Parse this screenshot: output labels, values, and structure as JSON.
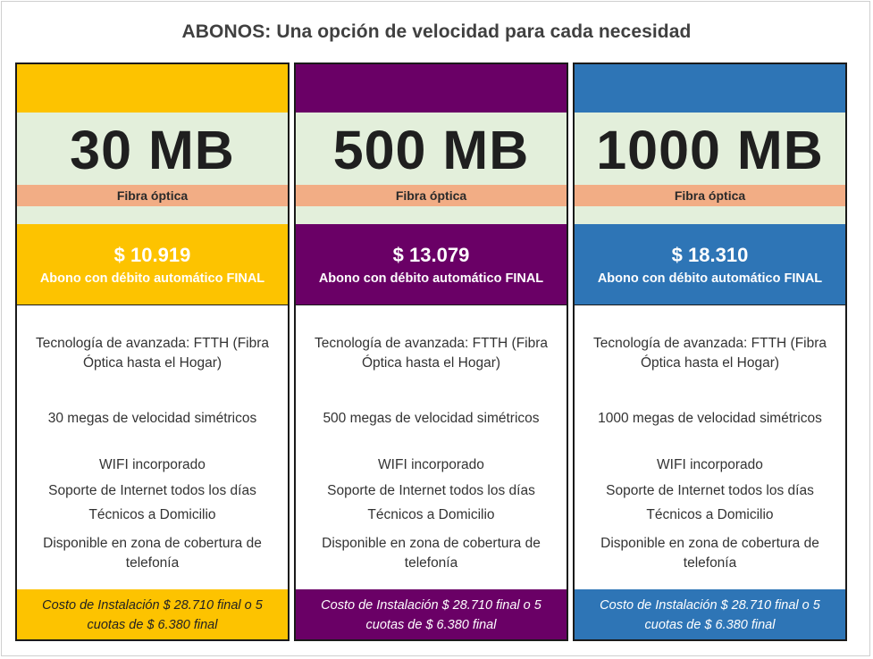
{
  "title": "ABONOS: Una opción de velocidad para cada necesidad",
  "plans": [
    {
      "speed": "30 MB",
      "fiber_label": "Fibra óptica",
      "price": "$ 10.919",
      "price_caption": "Abono con débito automático FINAL",
      "features": [
        "Tecnología de avanzada: FTTH (Fibra Óptica hasta el Hogar)",
        "30 megas  de velocidad simétricos",
        "WIFI incorporado",
        "Soporte de Internet todos los días",
        "Técnicos a Domicilio",
        "Disponible en zona de cobertura de telefonía"
      ],
      "installation": "Costo de Instalación $ 28.710  final o 5 cuotas de $ 6.380 final",
      "accent_color": "#fdc300",
      "install_bg": "#fdc300",
      "install_text_color": "#222222"
    },
    {
      "speed": "500 MB",
      "fiber_label": "Fibra óptica",
      "price": "$ 13.079",
      "price_caption": "Abono con débito automático FINAL",
      "features": [
        "Tecnología de avanzada: FTTH (Fibra Óptica hasta el Hogar)",
        "500 megas  de velocidad simétricos",
        "WIFI incorporado",
        "Soporte de Internet todos los días",
        "Técnicos a Domicilio",
        "Disponible en zona de cobertura de telefonía"
      ],
      "installation": "Costo de Instalación $ 28.710  final o 5 cuotas de $ 6.380 final",
      "accent_color": "#6a0066",
      "install_bg": "#6a0066",
      "install_text_color": "#ffffff"
    },
    {
      "speed": "1000 MB",
      "fiber_label": "Fibra óptica",
      "price": "$ 18.310",
      "price_caption": "Abono con débito automático FINAL",
      "features": [
        "Tecnología de avanzada: FTTH (Fibra Óptica hasta el Hogar)",
        "1000 megas  de velocidad simétricos",
        "WIFI incorporado",
        "Soporte de Internet todos los días",
        "Técnicos a Domicilio",
        "Disponible en zona de cobertura de telefonía"
      ],
      "installation": "Costo de Instalación $ 28.710  final o 5 cuotas de $ 6.380 final",
      "accent_color": "#2e75b6",
      "install_bg": "#2e75b6",
      "install_text_color": "#ffffff"
    }
  ]
}
